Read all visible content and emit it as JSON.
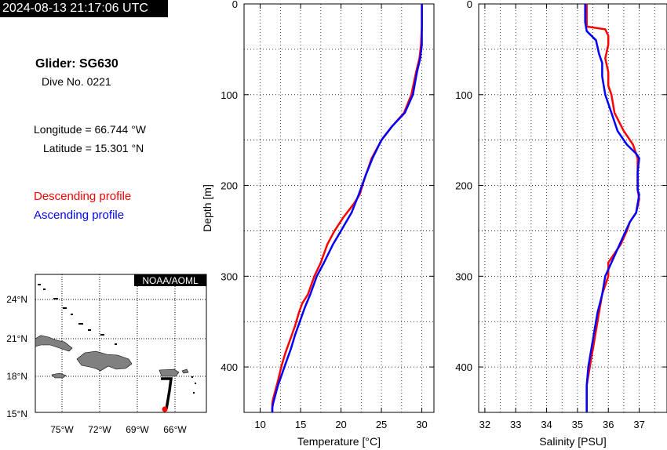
{
  "header": {
    "timestamp": "2024-08-13 21:17:06 UTC",
    "glider_title": "Glider: SG630",
    "dive_number": "Dive No. 0221",
    "longitude": "Longitude = 66.744 °W",
    "latitude": "Latitude = 15.301 °N"
  },
  "legend": {
    "descending": "Descending profile",
    "ascending": "Ascending profile"
  },
  "colors": {
    "descending": "#ff0000",
    "ascending": "#0000ff",
    "land": "#808080",
    "track": "#000000",
    "position": "#ff0000"
  },
  "map": {
    "label": "NOAA/AOML",
    "lon_ticks": [
      "75°W",
      "72°W",
      "69°W",
      "66°W"
    ],
    "lat_ticks": [
      "24°N",
      "21°N",
      "18°N",
      "15°N"
    ]
  },
  "chart_data": [
    {
      "type": "line",
      "xlabel": "Temperature [°C]",
      "ylabel": "Depth [m]",
      "xlim": [
        8,
        31.5
      ],
      "ylim": [
        450,
        0
      ],
      "xticks": [
        10,
        15,
        20,
        25,
        30
      ],
      "yticks": [
        0,
        100,
        200,
        300,
        400
      ],
      "grid": true,
      "series": [
        {
          "role": "descending",
          "x": [
            30.0,
            30.0,
            29.9,
            29.7,
            29.3,
            28.7,
            27.8,
            26.3,
            25.0,
            23.8,
            23.0,
            22.3,
            21.6,
            20.3,
            19.2,
            18.3,
            17.5,
            16.7,
            15.9,
            15.2,
            14.8,
            14.3,
            13.7,
            13.1,
            12.6,
            12.2,
            11.9,
            11.6,
            11.5,
            11.5
          ],
          "y": [
            0,
            25,
            45,
            60,
            75,
            100,
            120,
            135,
            150,
            170,
            190,
            210,
            220,
            235,
            250,
            265,
            285,
            300,
            320,
            330,
            340,
            355,
            370,
            385,
            400,
            415,
            425,
            435,
            440,
            450
          ]
        },
        {
          "role": "ascending",
          "x": [
            30.0,
            30.0,
            30.0,
            29.8,
            29.4,
            28.9,
            27.9,
            26.3,
            25.0,
            23.9,
            23.0,
            22.2,
            21.3,
            20.0,
            19.0,
            17.9,
            17.0,
            16.2,
            15.5,
            14.9,
            14.3,
            13.8,
            13.2,
            12.6,
            12.2,
            11.9,
            11.6,
            11.5,
            11.5
          ],
          "y": [
            0,
            25,
            45,
            60,
            75,
            100,
            120,
            135,
            150,
            170,
            190,
            210,
            230,
            250,
            265,
            285,
            300,
            320,
            335,
            350,
            365,
            380,
            395,
            410,
            420,
            430,
            440,
            445,
            450
          ]
        }
      ]
    },
    {
      "type": "line",
      "xlabel": "Salinity [PSU]",
      "ylabel": "",
      "xlim": [
        31.8,
        37.9
      ],
      "ylim": [
        450,
        0
      ],
      "xticks": [
        32,
        33,
        34,
        35,
        36,
        37
      ],
      "yticks": [
        0,
        100,
        200,
        300,
        400
      ],
      "grid": true,
      "series": [
        {
          "role": "descending",
          "x": [
            35.3,
            35.3,
            35.3,
            35.9,
            36.0,
            36.0,
            35.9,
            36.0,
            36.0,
            36.1,
            36.2,
            36.5,
            36.8,
            36.95,
            36.95,
            36.95,
            37.0,
            36.9,
            36.7,
            36.6,
            36.4,
            36.2,
            36.0,
            36.0,
            35.8,
            35.7,
            35.6,
            35.5,
            35.4,
            35.3,
            35.3
          ],
          "y": [
            0,
            20,
            25,
            28,
            35,
            45,
            60,
            75,
            90,
            100,
            120,
            140,
            155,
            170,
            190,
            205,
            215,
            230,
            240,
            250,
            265,
            275,
            285,
            300,
            320,
            340,
            360,
            380,
            400,
            420,
            450
          ]
        },
        {
          "role": "ascending",
          "x": [
            35.25,
            35.25,
            35.3,
            35.6,
            35.7,
            35.8,
            35.8,
            35.8,
            35.9,
            36.1,
            36.3,
            36.6,
            36.9,
            37.0,
            36.95,
            36.95,
            37.0,
            36.9,
            36.7,
            36.5,
            36.3,
            36.1,
            35.9,
            35.8,
            35.65,
            35.55,
            35.45,
            35.35,
            35.3,
            35.3
          ],
          "y": [
            0,
            20,
            30,
            40,
            55,
            65,
            75,
            80,
            100,
            120,
            140,
            155,
            165,
            170,
            185,
            205,
            210,
            230,
            240,
            255,
            270,
            285,
            300,
            320,
            340,
            360,
            380,
            400,
            420,
            450
          ]
        }
      ]
    }
  ]
}
